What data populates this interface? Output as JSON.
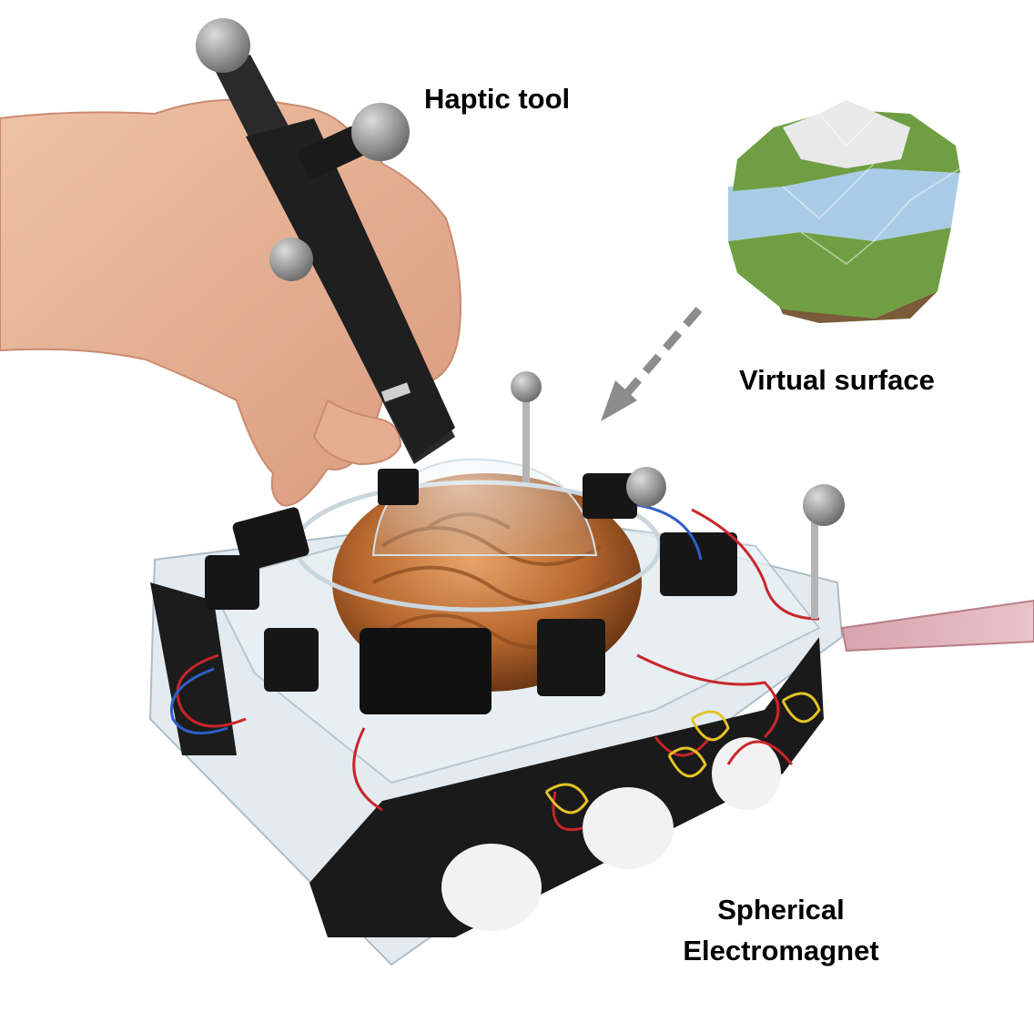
{
  "labels": {
    "haptic_tool": "Haptic tool",
    "virtual_surface": "Virtual surface",
    "spherical_line1": "Spherical",
    "spherical_line2": "Electromagnet"
  },
  "colors": {
    "background": "#ffffff",
    "arrow": "#8c8c8c",
    "planet_green": "#6f9f42",
    "planet_blue": "#a9cce6",
    "planet_snow": "#e9e9e9",
    "planet_soil": "#7a5b3a",
    "copper": "#c0713a",
    "device_black": "#1a1a1a",
    "acrylic": "#dfe8ee"
  }
}
